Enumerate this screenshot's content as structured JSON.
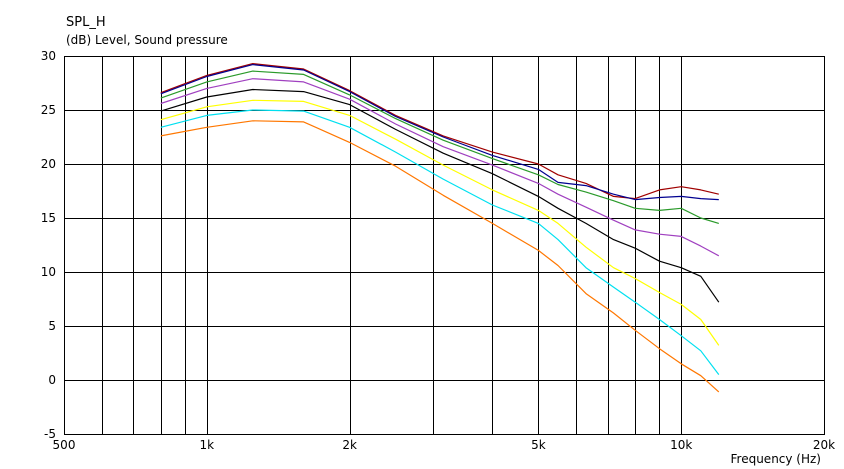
{
  "chart_data": {
    "type": "line",
    "title": "SPL_H",
    "subtitle": "(dB)  Level, Sound pressure",
    "xlabel": "Frequency  (Hz)",
    "xscale": "log",
    "xlim": [
      500,
      20000
    ],
    "ylim": [
      -5,
      30
    ],
    "x_tick_labels": [
      "500",
      "1k",
      "2k",
      "5k",
      "10k",
      "20k"
    ],
    "y_tick_labels": [
      "30",
      "25",
      "20",
      "15",
      "10",
      "5",
      "0",
      "-5"
    ],
    "grid": true,
    "legend": "none",
    "x": [
      800,
      1000,
      1250,
      1600,
      2000,
      2500,
      3150,
      4000,
      5000,
      5500,
      6300,
      7200,
      8000,
      9000,
      10000,
      11000,
      12000
    ],
    "series": [
      {
        "color": "#a00000",
        "values": [
          26.6,
          28.2,
          29.3,
          28.8,
          26.8,
          24.5,
          22.6,
          21.1,
          20.0,
          19.0,
          18.2,
          17.0,
          16.8,
          17.6,
          17.9,
          17.6,
          17.2
        ]
      },
      {
        "color": "#000090",
        "values": [
          26.5,
          28.1,
          29.2,
          28.7,
          26.7,
          24.4,
          22.5,
          20.8,
          19.5,
          18.3,
          18.0,
          17.2,
          16.7,
          16.9,
          17.0,
          16.8,
          16.7
        ]
      },
      {
        "color": "#2a9a2a",
        "values": [
          26.1,
          27.6,
          28.6,
          28.3,
          26.4,
          24.2,
          22.2,
          20.5,
          19.0,
          18.1,
          17.4,
          16.6,
          15.9,
          15.7,
          15.9,
          15.0,
          14.5
        ]
      },
      {
        "color": "#a040c0",
        "values": [
          25.6,
          27.0,
          27.9,
          27.6,
          26.0,
          23.7,
          21.6,
          19.9,
          18.2,
          17.2,
          16.0,
          14.8,
          13.9,
          13.5,
          13.3,
          12.4,
          11.5
        ]
      },
      {
        "color": "#000000",
        "values": [
          24.9,
          26.2,
          26.9,
          26.7,
          25.5,
          23.2,
          21.0,
          19.1,
          17.0,
          15.9,
          14.5,
          13.0,
          12.2,
          11.0,
          10.4,
          9.6,
          7.2
        ]
      },
      {
        "color": "#ffff00",
        "values": [
          24.1,
          25.3,
          25.9,
          25.8,
          24.5,
          22.3,
          19.9,
          17.6,
          15.7,
          14.5,
          12.3,
          10.4,
          9.4,
          8.1,
          7.0,
          5.6,
          3.2
        ]
      },
      {
        "color": "#00e0f0",
        "values": [
          23.4,
          24.5,
          25.0,
          24.9,
          23.4,
          21.1,
          18.6,
          16.2,
          14.5,
          13.0,
          10.4,
          8.6,
          7.2,
          5.6,
          4.1,
          2.7,
          0.5
        ]
      },
      {
        "color": "#ff7700",
        "values": [
          22.6,
          23.4,
          24.0,
          23.9,
          22.0,
          19.8,
          17.1,
          14.5,
          12.0,
          10.6,
          8.0,
          6.2,
          4.6,
          2.9,
          1.5,
          0.4,
          -1.1
        ]
      }
    ]
  }
}
